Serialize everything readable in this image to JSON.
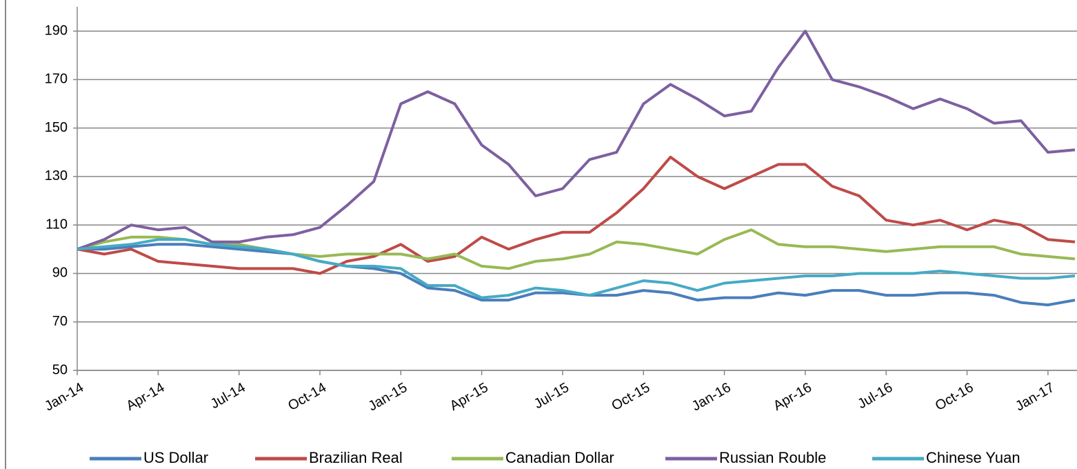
{
  "chart_data": {
    "type": "line",
    "categories": [
      "Jan-14",
      null,
      null,
      "Apr-14",
      null,
      null,
      "Jul-14",
      null,
      null,
      "Oct-14",
      null,
      null,
      "Jan-15",
      null,
      null,
      "Apr-15",
      null,
      null,
      "Jul-15",
      null,
      null,
      "Oct-15",
      null,
      null,
      "Jan-16",
      null,
      null,
      "Apr-16",
      null,
      null,
      "Jul-16",
      null,
      null,
      "Oct-16",
      null,
      null,
      "Jan-17",
      null
    ],
    "series": [
      {
        "name": "US Dollar",
        "color": "#4a7ebb",
        "values": [
          100,
          100,
          101,
          102,
          102,
          101,
          100,
          99,
          98,
          95,
          93,
          92,
          90,
          84,
          83,
          79,
          79,
          82,
          82,
          81,
          81,
          83,
          82,
          79,
          80,
          80,
          82,
          81,
          83,
          83,
          81,
          81,
          82,
          82,
          81,
          78,
          77,
          79
        ]
      },
      {
        "name": "Brazilian Real",
        "color": "#be4b48",
        "values": [
          100,
          98,
          100,
          95,
          94,
          93,
          92,
          92,
          92,
          90,
          95,
          97,
          102,
          95,
          97,
          105,
          100,
          104,
          107,
          107,
          115,
          125,
          138,
          130,
          125,
          130,
          135,
          135,
          126,
          122,
          112,
          110,
          112,
          108,
          112,
          110,
          104,
          103
        ]
      },
      {
        "name": "Canadian Dollar",
        "color": "#98b954",
        "values": [
          100,
          103,
          105,
          105,
          104,
          102,
          102,
          100,
          98,
          97,
          98,
          98,
          98,
          96,
          98,
          93,
          92,
          95,
          96,
          98,
          103,
          102,
          100,
          98,
          104,
          108,
          102,
          101,
          101,
          100,
          99,
          100,
          101,
          101,
          101,
          98,
          97,
          96
        ]
      },
      {
        "name": "Russian Rouble",
        "color": "#7d60a0",
        "values": [
          100,
          104,
          110,
          108,
          109,
          103,
          103,
          105,
          106,
          109,
          118,
          128,
          160,
          165,
          160,
          143,
          135,
          122,
          125,
          137,
          140,
          160,
          168,
          162,
          155,
          157,
          175,
          190,
          170,
          167,
          163,
          158,
          162,
          158,
          152,
          153,
          140,
          141
        ]
      },
      {
        "name": "Chinese Yuan",
        "color": "#46aac5",
        "values": [
          100,
          101,
          102,
          104,
          104,
          102,
          101,
          100,
          98,
          95,
          93,
          93,
          92,
          85,
          85,
          80,
          81,
          84,
          83,
          81,
          84,
          87,
          86,
          83,
          86,
          87,
          88,
          89,
          89,
          90,
          90,
          90,
          91,
          90,
          89,
          88,
          88,
          89
        ]
      }
    ],
    "ylim": [
      50,
      200
    ],
    "yticks": [
      50,
      70,
      90,
      110,
      130,
      150,
      170,
      190
    ],
    "grid": true,
    "legend": "bottom"
  }
}
